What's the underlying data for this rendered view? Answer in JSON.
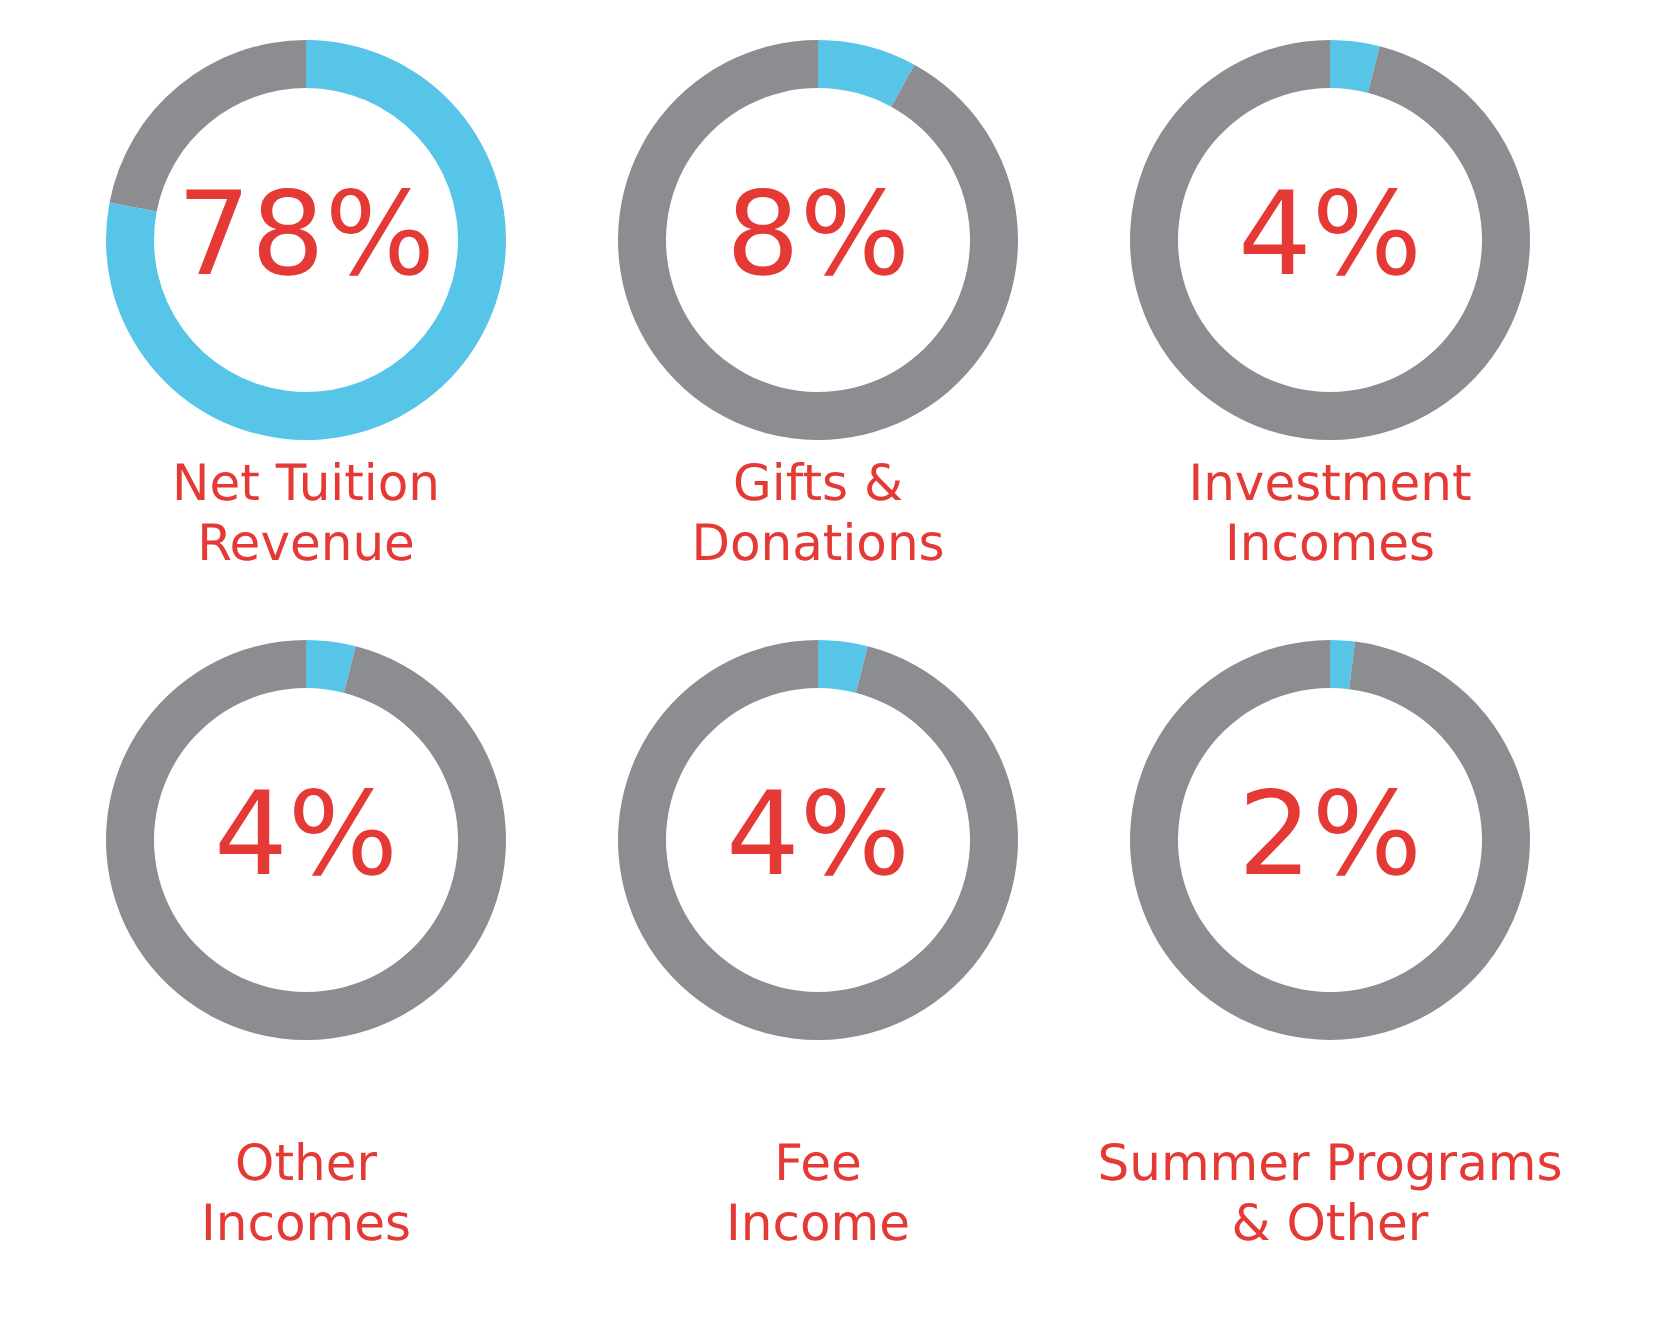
{
  "chart_data": [
    {
      "type": "donut",
      "title": "Net Tuition\nRevenue",
      "values": [
        78,
        22
      ],
      "colors": [
        "#56c5e8",
        "#8b8d90"
      ],
      "value_labels": [
        "78%",
        null
      ]
    },
    {
      "type": "donut",
      "title": "Gifts &\nDonations",
      "values": [
        8,
        92
      ],
      "colors": [
        "#56c5e8",
        "#8b8d90"
      ],
      "value_labels": [
        "8%",
        null
      ]
    },
    {
      "type": "donut",
      "title": "Investment\nIncomes",
      "values": [
        4,
        96
      ],
      "colors": [
        "#56c5e8",
        "#8b8d90"
      ],
      "value_labels": [
        "4%",
        null
      ]
    },
    {
      "type": "donut",
      "title": "Other\nIncomes",
      "values": [
        4,
        96
      ],
      "colors": [
        "#56c5e8",
        "#8b8d90"
      ],
      "value_labels": [
        "4%",
        null
      ]
    },
    {
      "type": "donut",
      "title": "Fee\nIncome",
      "values": [
        4,
        96
      ],
      "colors": [
        "#56c5e8",
        "#8b8d90"
      ],
      "value_labels": [
        "4%",
        null
      ]
    },
    {
      "type": "donut",
      "title": "Summer Programs\n& Other",
      "values": [
        2,
        98
      ],
      "colors": [
        "#56c5e8",
        "#8b8d90"
      ],
      "value_labels": [
        "2%",
        null
      ]
    }
  ]
}
